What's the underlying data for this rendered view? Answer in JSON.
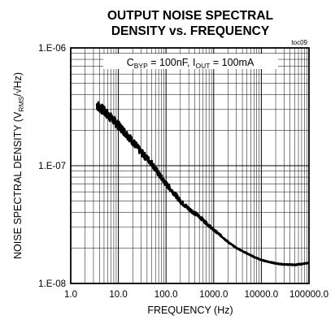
{
  "chart_data": {
    "type": "line",
    "title_line1": "OUTPUT NOISE SPECTRAL",
    "title_line2": "DENSITY vs. FREQUENCY",
    "figure_code": "toc09",
    "xlabel": "FREQUENCY (Hz)",
    "ylabel": {
      "prefix": "NOISE SPECTRAL DENSITY (V",
      "sub": "RMS",
      "suffix": "/√Hz)"
    },
    "annotation": {
      "c": "C",
      "c_sub": "BYP",
      "mid": " = 100nF, I",
      "i_sub": "OUT",
      "tail": " = 100mA"
    },
    "x_scale": "log",
    "y_scale": "log",
    "xlim": [
      1,
      100000
    ],
    "ylim": [
      1e-08,
      1e-06
    ],
    "grid": true,
    "x_ticks": [
      {
        "v": 1,
        "label": "1.0"
      },
      {
        "v": 10,
        "label": "10.0"
      },
      {
        "v": 100,
        "label": "100.0"
      },
      {
        "v": 1000,
        "label": "1000.0"
      },
      {
        "v": 10000,
        "label": "10000.0"
      },
      {
        "v": 100000,
        "label": "100000.0"
      }
    ],
    "y_ticks": [
      {
        "v": 1e-08,
        "label": "1.E-08"
      },
      {
        "v": 1e-07,
        "label": "1.E-07"
      },
      {
        "v": 1e-06,
        "label": "1.E-06"
      }
    ],
    "series": [
      {
        "color": "#000000",
        "x": [
          3.5,
          5,
          7,
          10,
          15,
          20,
          30,
          50,
          70,
          100,
          150,
          200,
          300,
          500,
          700,
          1000,
          1500,
          2000,
          3000,
          5000,
          7000,
          10000,
          15000,
          20000,
          30000,
          50000,
          70000,
          100000
        ],
        "y": [
          3.3e-07,
          2.9e-07,
          2.55e-07,
          2.2e-07,
          1.85e-07,
          1.6e-07,
          1.3e-07,
          1.05e-07,
          8.5e-08,
          7e-08,
          5.8e-08,
          5e-08,
          4.3e-08,
          3.7e-08,
          3.25e-08,
          2.85e-08,
          2.5e-08,
          2.25e-08,
          2e-08,
          1.8e-08,
          1.68e-08,
          1.58e-08,
          1.52e-08,
          1.48e-08,
          1.45e-08,
          1.44e-08,
          1.46e-08,
          1.5e-08
        ]
      }
    ]
  }
}
